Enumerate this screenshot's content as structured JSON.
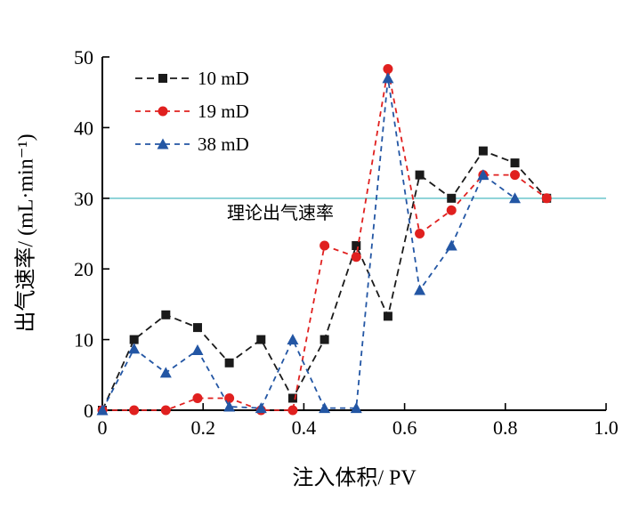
{
  "chart_data": {
    "type": "line",
    "title": "",
    "xlabel": "注入体积/ PV",
    "ylabel": "出气速率/ (mL·min⁻¹)",
    "xlim": [
      0,
      1.0
    ],
    "ylim": [
      0,
      50
    ],
    "x_ticks": [
      0,
      0.2,
      0.4,
      0.6,
      0.8,
      1.0
    ],
    "x_tick_labels": [
      "0",
      "0.2",
      "0.4",
      "0.6",
      "0.8",
      "1.0"
    ],
    "y_ticks": [
      0,
      10,
      20,
      30,
      40,
      50
    ],
    "y_tick_labels": [
      "0",
      "10",
      "20",
      "30",
      "40",
      "50"
    ],
    "grid": false,
    "legend_position": "top-left",
    "x": [
      0,
      0.063,
      0.126,
      0.189,
      0.252,
      0.315,
      0.378,
      0.441,
      0.504,
      0.567,
      0.63,
      0.693,
      0.756,
      0.819,
      0.882
    ],
    "series": [
      {
        "name": "10 mD",
        "marker": "square",
        "color": "#1a1a1a",
        "dash": "8 5",
        "values": [
          0,
          10.0,
          13.5,
          11.7,
          6.7,
          10.0,
          1.7,
          10.0,
          23.3,
          13.3,
          33.3,
          30.0,
          36.7,
          35.0,
          30.0
        ]
      },
      {
        "name": "19 mD",
        "marker": "circle",
        "color": "#e0201f",
        "dash": "6 5",
        "values": [
          0,
          0,
          0,
          1.7,
          1.7,
          0,
          0,
          23.3,
          21.7,
          48.3,
          25.0,
          28.3,
          33.3,
          33.3,
          30.0
        ]
      },
      {
        "name": "38 mD",
        "marker": "triangle",
        "color": "#2356a4",
        "dash": "6 5",
        "values": [
          0,
          8.7,
          5.3,
          8.5,
          0.5,
          0.3,
          10.0,
          0.3,
          0.3,
          47.0,
          17.0,
          23.3,
          33.3,
          30.0,
          null
        ]
      }
    ],
    "reference_line": {
      "y": 30,
      "color": "#76cad0",
      "label": "理论出气速率"
    }
  }
}
